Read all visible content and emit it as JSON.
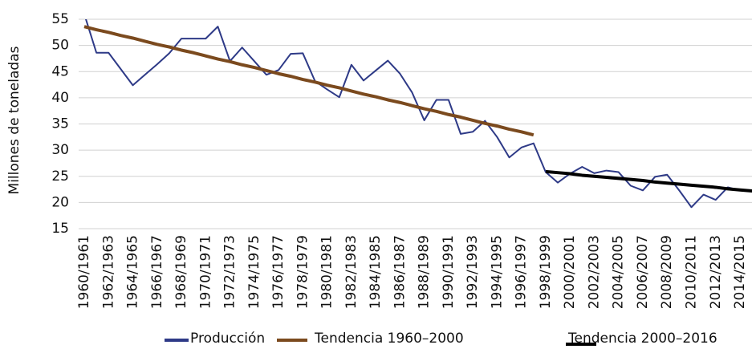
{
  "chart_data": {
    "type": "line",
    "y_label": "Millones de toneladas",
    "categories": [
      "1960/1961",
      null,
      "1962/1963",
      null,
      "1964/1965",
      null,
      "1966/1967",
      null,
      "1968/1969",
      null,
      "1970/1971",
      null,
      "1972/1973",
      null,
      "1974/1975",
      null,
      "1976/1977",
      null,
      "1978/1979",
      null,
      "1980/1981",
      null,
      "1982/1983",
      null,
      "1984/1985",
      null,
      "1986/1987",
      null,
      "1988/1989",
      null,
      "1990/1991",
      null,
      "1992/1993",
      null,
      "1994/1995",
      null,
      "1996/1997",
      null,
      "1998/1999",
      null,
      "2000/2001",
      null,
      "2002/2003",
      null,
      "2004/2005",
      null,
      "2006/2007",
      null,
      "2008/2009",
      null,
      "2010/2011",
      null,
      "2012/2013",
      null,
      "2014/2015",
      null
    ],
    "series": [
      {
        "name": "Producción",
        "color": "#2e3a87",
        "width": 2,
        "values": [
          56,
          48.6,
          48.6,
          45.5,
          42.4,
          44.4,
          46.4,
          48.5,
          51.3,
          51.3,
          51.3,
          53.6,
          47.0,
          49.6,
          47.0,
          44.4,
          45.3,
          48.4,
          48.5,
          43.2,
          41.6,
          40.1,
          46.3,
          43.3,
          45.2,
          47.1,
          44.6,
          41.0,
          35.7,
          39.6,
          39.6,
          33.1,
          33.5,
          35.6,
          32.5,
          28.6,
          30.5,
          31.3,
          25.8,
          23.8,
          25.5,
          26.8,
          25.6,
          26.1,
          25.8,
          23.2,
          22.3,
          24.9,
          25.3,
          22.3,
          19.1,
          21.5,
          20.5,
          22.9,
          22.3,
          null
        ]
      },
      {
        "name": "Tendencia 1960–2000",
        "color": "#7b4a1e",
        "width": 4,
        "values": [
          53.6,
          53.0,
          52.5,
          51.9,
          51.4,
          50.8,
          50.2,
          49.7,
          49.1,
          48.6,
          48.0,
          47.4,
          46.9,
          46.3,
          45.8,
          45.2,
          44.6,
          44.1,
          43.5,
          43.0,
          42.4,
          41.9,
          41.3,
          40.7,
          40.2,
          39.6,
          39.1,
          38.5,
          37.9,
          37.4,
          36.8,
          36.3,
          35.7,
          35.1,
          34.6,
          34.0,
          33.5,
          32.9,
          null,
          null,
          null,
          null,
          null,
          null,
          null,
          null,
          null,
          null,
          null,
          null,
          null,
          null,
          null,
          null,
          null,
          null
        ]
      },
      {
        "name": "Tendencia 2000–2016",
        "color": "#000000",
        "width": 4,
        "values": [
          null,
          null,
          null,
          null,
          null,
          null,
          null,
          null,
          null,
          null,
          null,
          null,
          null,
          null,
          null,
          null,
          null,
          null,
          null,
          null,
          null,
          null,
          null,
          null,
          null,
          null,
          null,
          null,
          null,
          null,
          null,
          null,
          null,
          null,
          null,
          null,
          null,
          null,
          25.9,
          25.7,
          25.5,
          25.2,
          25.0,
          24.8,
          24.6,
          24.4,
          24.2,
          23.9,
          23.7,
          23.5,
          23.3,
          23.1,
          22.9,
          22.6,
          22.4,
          22.2
        ]
      }
    ],
    "ylim": [
      15,
      55
    ],
    "yticks": [
      15,
      20,
      25,
      30,
      35,
      40,
      45,
      50,
      55
    ],
    "grid": true
  }
}
